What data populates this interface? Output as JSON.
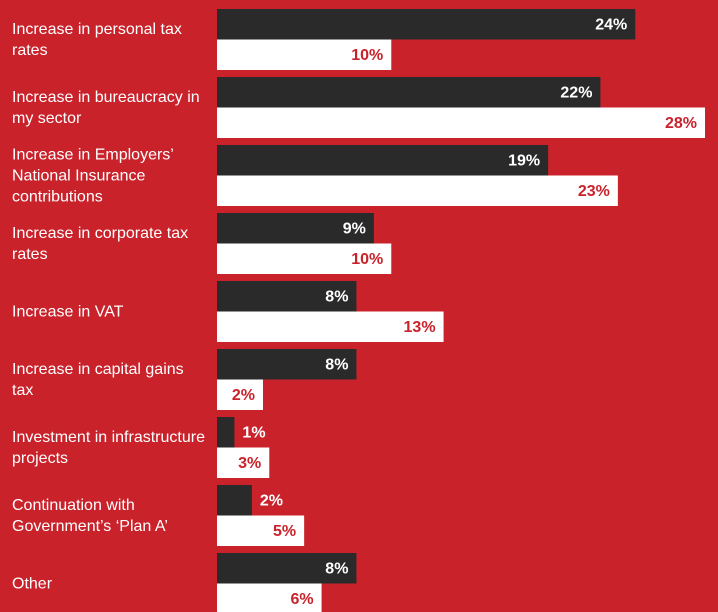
{
  "chart_data": {
    "type": "bar",
    "orientation": "horizontal",
    "categories": [
      "Increase in personal tax rates",
      "Increase in bureaucracy in my sector",
      "Increase in Employers’ National Insurance contributions",
      "Increase in corporate tax rates",
      "Increase in VAT",
      "Increase in capital gains tax",
      "Investment in infrastructure projects",
      "Continuation with Government’s ‘Plan A’",
      "Other"
    ],
    "series": [
      {
        "color": "#2a2a2a",
        "label_color": "#ffffff",
        "values": [
          24,
          22,
          19,
          9,
          8,
          8,
          1,
          2,
          8
        ],
        "value_labels": [
          "24%",
          "22%",
          "19%",
          "9%",
          "8%",
          "8%",
          "1%",
          "2%",
          "8%"
        ]
      },
      {
        "color": "#ffffff",
        "label_color": "#c9222b",
        "values": [
          10,
          28,
          23,
          10,
          13,
          2,
          3,
          5,
          6
        ],
        "value_labels": [
          "10%",
          "28%",
          "23%",
          "10%",
          "13%",
          "2%",
          "3%",
          "5%",
          "6%"
        ]
      }
    ]
  }
}
